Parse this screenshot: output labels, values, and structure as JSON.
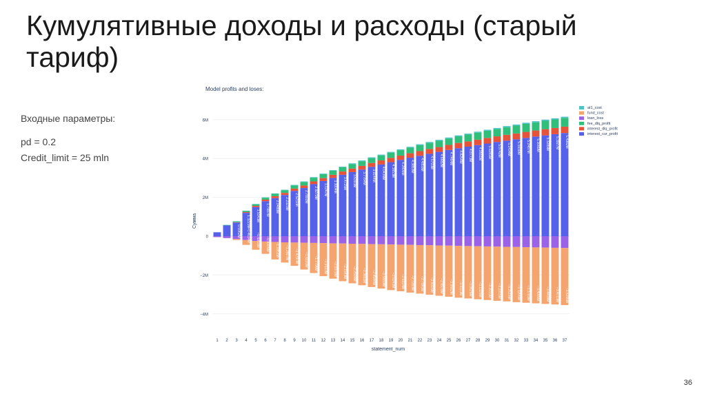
{
  "slide": {
    "title": "Кумулятивные доходы и расходы (старый тариф)",
    "params_heading": "Входные параметры:",
    "params": [
      "pd = 0.2",
      "Credit_limit = 25 mln"
    ],
    "page_number": "36"
  },
  "colors": {
    "at1_cost": "#4fc3c8",
    "fund_cost": "#f4a46e",
    "loan_loss": "#9a62e6",
    "fee_dlq_profit": "#2fbf7a",
    "interest_dlq_profit": "#e5533a",
    "interest_cur_profit": "#5661ea"
  },
  "chart_data": {
    "type": "bar",
    "stacked": true,
    "title": "Model profits and loses:",
    "xlabel": "statement_num",
    "ylabel": "Сумма",
    "ylim": [
      -4.6,
      6.5
    ],
    "ytick_values": [
      -4,
      -2,
      0,
      2,
      4,
      6
    ],
    "ytick_labels": [
      "−4M",
      "−2M",
      "0",
      "2M",
      "4M",
      "6M"
    ],
    "grid": true,
    "legend_position": "top-right",
    "legend": [
      "at1_cost",
      "fund_cost",
      "loan_loss",
      "fee_dlq_profit",
      "interest_dlq_profit",
      "interest_cur_profit"
    ],
    "categories": [
      "1",
      "2",
      "3",
      "4",
      "5",
      "6",
      "7",
      "8",
      "9",
      "10",
      "11",
      "12",
      "13",
      "14",
      "15",
      "16",
      "17",
      "18",
      "19",
      "20",
      "21",
      "22",
      "23",
      "24",
      "25",
      "26",
      "27",
      "28",
      "29",
      "30",
      "31",
      "32",
      "33",
      "34",
      "35",
      "36",
      "37"
    ],
    "series": [
      {
        "name": "interest_cur_profit",
        "values": [
          0.2,
          0.55,
          0.7,
          1.2,
          1.5,
          1.8,
          1.96,
          2.12,
          2.33,
          2.48,
          2.68,
          2.84,
          3.0,
          3.16,
          3.3,
          3.43,
          3.57,
          3.69,
          3.81,
          3.93,
          4.04,
          4.14,
          4.24,
          4.34,
          4.44,
          4.53,
          4.61,
          4.69,
          4.77,
          4.85,
          4.92,
          4.99,
          5.06,
          5.13,
          5.19,
          5.25,
          5.31
        ]
      },
      {
        "name": "interest_dlq_profit",
        "values": [
          0.0,
          0.0,
          0.02,
          0.04,
          0.06,
          0.08,
          0.1,
          0.11,
          0.12,
          0.13,
          0.14,
          0.15,
          0.16,
          0.17,
          0.18,
          0.19,
          0.2,
          0.21,
          0.22,
          0.22,
          0.23,
          0.24,
          0.25,
          0.25,
          0.26,
          0.27,
          0.27,
          0.28,
          0.29,
          0.29,
          0.3,
          0.3,
          0.31,
          0.31,
          0.32,
          0.32,
          0.33
        ]
      },
      {
        "name": "fee_dlq_profit",
        "values": [
          0.0,
          0.02,
          0.04,
          0.06,
          0.08,
          0.1,
          0.12,
          0.14,
          0.16,
          0.18,
          0.19,
          0.2,
          0.21,
          0.22,
          0.23,
          0.24,
          0.25,
          0.26,
          0.27,
          0.28,
          0.29,
          0.3,
          0.31,
          0.32,
          0.33,
          0.34,
          0.35,
          0.36,
          0.37,
          0.38,
          0.39,
          0.4,
          0.41,
          0.42,
          0.43,
          0.44,
          0.45
        ]
      },
      {
        "name": "at1_cost",
        "values": [
          0.0,
          0.01,
          0.01,
          0.01,
          0.02,
          0.02,
          0.02,
          0.02,
          0.03,
          0.03,
          0.03,
          0.03,
          0.03,
          0.03,
          0.04,
          0.04,
          0.04,
          0.04,
          0.04,
          0.04,
          0.04,
          0.05,
          0.05,
          0.05,
          0.05,
          0.05,
          0.05,
          0.05,
          0.05,
          0.05,
          0.06,
          0.06,
          0.06,
          0.06,
          0.06,
          0.06,
          0.06
        ]
      },
      {
        "name": "loan_loss",
        "values": [
          -0.05,
          -0.1,
          -0.15,
          -0.2,
          -0.25,
          -0.28,
          -0.3,
          -0.32,
          -0.33,
          -0.34,
          -0.35,
          -0.36,
          -0.37,
          -0.38,
          -0.39,
          -0.4,
          -0.41,
          -0.42,
          -0.43,
          -0.44,
          -0.45,
          -0.46,
          -0.47,
          -0.48,
          -0.49,
          -0.5,
          -0.51,
          -0.52,
          -0.53,
          -0.54,
          -0.55,
          -0.56,
          -0.57,
          -0.58,
          -0.59,
          -0.6,
          -0.61
        ]
      },
      {
        "name": "fund_cost",
        "values": [
          0.0,
          0.0,
          -0.05,
          -0.25,
          -0.45,
          -0.63,
          -0.9,
          -1.04,
          -1.2,
          -1.38,
          -1.55,
          -1.7,
          -1.82,
          -1.94,
          -2.04,
          -2.13,
          -2.21,
          -2.28,
          -2.35,
          -2.4,
          -2.46,
          -2.5,
          -2.55,
          -2.59,
          -2.63,
          -2.67,
          -2.7,
          -2.73,
          -2.76,
          -2.79,
          -2.81,
          -2.84,
          -2.86,
          -2.88,
          -2.9,
          -2.92,
          -2.94
        ]
      }
    ],
    "labels_pos": [
      "",
      "",
      "0.5062M",
      "1.3223M",
      "1.5143M",
      "1.7997M",
      "2.0488M",
      "2.2323M",
      "2.5231M",
      "2.7802M",
      "2.9279M",
      "3.1247M",
      "3.3004M",
      "3.4725M",
      "3.6393M",
      "3.7764M",
      "3.9144M",
      "4.0436M",
      "4.1653M",
      "4.2806M",
      "4.3853M",
      "4.4855M",
      "4.5793M",
      "4.6682M",
      "4.7464M",
      "4.8254M",
      "4.8773M",
      "4.9551M",
      "5.0281M",
      "5.0742M",
      "5.1434M",
      "5.1939M",
      "5.2487M",
      "5.3089M",
      "5.3289M",
      "5.3927M",
      "5.4982M"
    ],
    "labels_neg": [
      "",
      "",
      "",
      "−0.4614M",
      "−0.6953M",
      "−0.9326M",
      "−1.1851M",
      "−1.2827M",
      "−1.4797M",
      "−1.6193M",
      "−1.7796M",
      "−1.9122M",
      "−2.0379M",
      "−2.1543M",
      "−2.2606M",
      "−2.3651M",
      "−2.4544M",
      "−2.5559M",
      "−2.6242M",
      "−2.6924M",
      "−2.7283M",
      "−2.7843M",
      "−2.8316M",
      "−2.8976M",
      "−2.9562M",
      "−3.0113M",
      "−3.0626M",
      "−3.1326M",
      "−3.2015M",
      "−3.2315M",
      "−3.2515M",
      "−3.3205M",
      "−3.3783M",
      "−3.4085M",
      "−3.4408M",
      "−3.4713M",
      "−3.5295M"
    ]
  }
}
